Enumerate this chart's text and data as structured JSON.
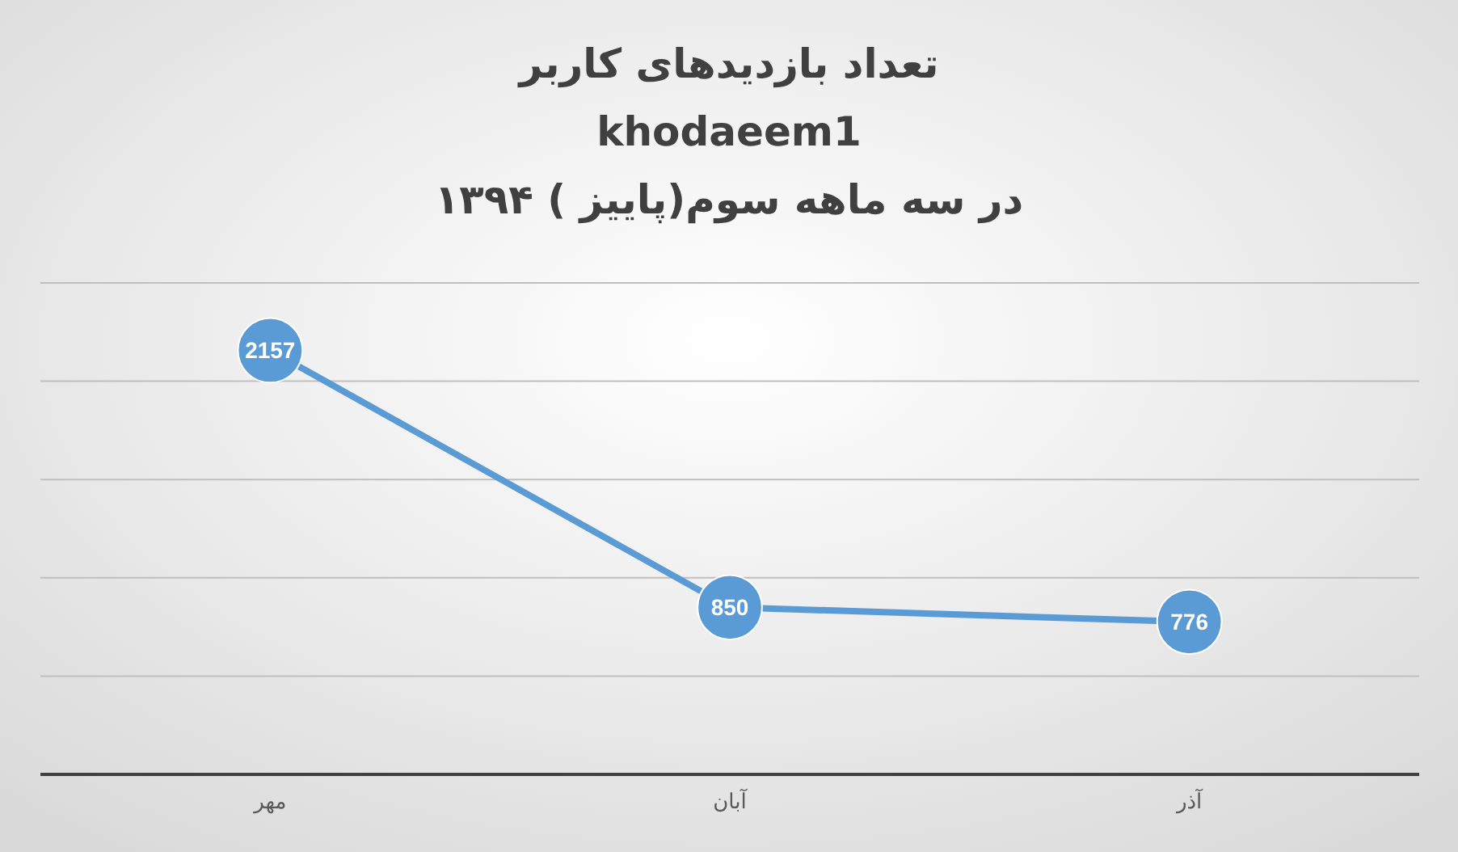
{
  "chart_data": {
    "type": "line",
    "title": "تعداد بازدیدهای کاربر\nkhodaeem1\nدر سه ماهه سوم(پاییز ) ۱۳۹۴",
    "categories": [
      "مهر",
      "آبان",
      "آذر"
    ],
    "series": [
      {
        "color": "#5b9bd5",
        "values": [
          2157,
          850,
          776
        ]
      }
    ],
    "ylim": [
      0,
      2500
    ],
    "yticks": [
      {
        "value": 0,
        "label": null
      },
      {
        "value": 500,
        "label": null
      },
      {
        "value": 1000,
        "label": null
      },
      {
        "value": 1500,
        "label": null
      },
      {
        "value": 2000,
        "label": null
      },
      {
        "value": 2500,
        "label": null
      }
    ],
    "tick_labels": "x",
    "grid": "y",
    "data_labels": true,
    "marker": "circle",
    "line_style": "solid"
  }
}
